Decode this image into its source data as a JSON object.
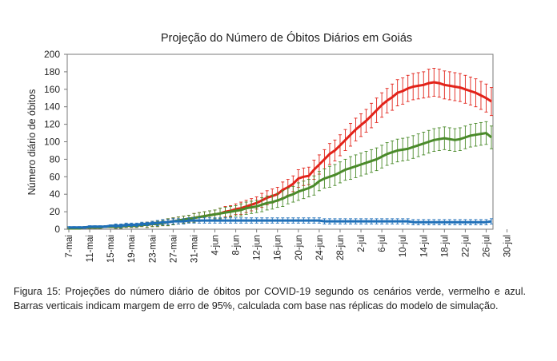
{
  "caption": "Figura 15: Projeções do número diário de óbitos por COVID-19 segundo os cenários verde, vermelho e azul. Barras verticais indicam margem de erro de 95%, calculada com base nas réplicas do modelo de simulação.",
  "chart_data": {
    "type": "line",
    "title": "Projeção do Número de Óbitos Diários em Goiás",
    "xlabel": "",
    "ylabel": "Número diário de óbitos",
    "ylim": [
      0,
      200
    ],
    "yticks": [
      0,
      20,
      40,
      60,
      80,
      100,
      120,
      140,
      160,
      180,
      200
    ],
    "xtick_labels": [
      "7-mai",
      "11-mai",
      "15-mai",
      "19-mai",
      "23-mai",
      "27-mai",
      "31-mai",
      "4-jun",
      "8-jun",
      "12-jun",
      "16-jun",
      "20-jun",
      "24-jun",
      "28-jun",
      "2-jul",
      "6-jul",
      "10-jul",
      "14-jul",
      "18-jul",
      "22-jul",
      "26-jul",
      "30-jul"
    ],
    "x_start": "7-mai",
    "x_end": "31-jul",
    "grid": false,
    "series": [
      {
        "color": "#e2231a",
        "values": [
          1,
          1,
          1,
          2,
          2,
          2,
          2,
          3,
          3,
          3,
          3,
          4,
          4,
          4,
          5,
          5,
          6,
          6,
          7,
          8,
          9,
          10,
          11,
          12,
          13,
          14,
          15,
          16,
          17,
          18,
          20,
          21,
          23,
          24,
          26,
          28,
          30,
          33,
          36,
          38,
          40,
          45,
          48,
          52,
          58,
          60,
          61,
          68,
          74,
          80,
          86,
          90,
          96,
          102,
          108,
          114,
          119,
          124,
          130,
          136,
          142,
          147,
          151,
          156,
          158,
          161,
          163,
          164,
          165,
          167,
          168,
          167,
          165,
          164,
          163,
          162,
          160,
          158,
          156,
          153,
          150,
          146
        ],
        "err": [
          1,
          1,
          1,
          1,
          1,
          1,
          1,
          1,
          1,
          2,
          2,
          2,
          2,
          2,
          2,
          3,
          3,
          3,
          3,
          4,
          4,
          4,
          4,
          4,
          5,
          5,
          5,
          5,
          5,
          6,
          6,
          6,
          6,
          7,
          7,
          7,
          7,
          8,
          8,
          8,
          8,
          9,
          9,
          9,
          10,
          10,
          10,
          11,
          11,
          11,
          12,
          12,
          12,
          12,
          13,
          13,
          13,
          13,
          14,
          14,
          14,
          14,
          15,
          15,
          15,
          15,
          15,
          15,
          15,
          16,
          16,
          16,
          16,
          16,
          16,
          16,
          16,
          16,
          16,
          16,
          16,
          16
        ]
      },
      {
        "color": "#4a8a2a",
        "values": [
          1,
          1,
          1,
          2,
          2,
          2,
          2,
          3,
          3,
          3,
          3,
          4,
          4,
          4,
          5,
          5,
          6,
          6,
          7,
          8,
          9,
          10,
          11,
          12,
          13,
          14,
          15,
          16,
          17,
          18,
          19,
          20,
          21,
          22,
          24,
          25,
          26,
          28,
          30,
          31,
          33,
          35,
          38,
          40,
          43,
          45,
          47,
          50,
          55,
          58,
          60,
          62,
          65,
          68,
          70,
          72,
          74,
          76,
          78,
          80,
          83,
          86,
          88,
          90,
          91,
          92,
          94,
          96,
          98,
          100,
          102,
          103,
          104,
          103,
          102,
          103,
          105,
          107,
          108,
          109,
          110,
          105
        ],
        "err": [
          1,
          1,
          1,
          1,
          1,
          1,
          1,
          1,
          1,
          2,
          2,
          2,
          2,
          2,
          2,
          3,
          3,
          3,
          3,
          4,
          4,
          4,
          4,
          4,
          5,
          5,
          5,
          5,
          5,
          6,
          6,
          6,
          6,
          7,
          7,
          7,
          7,
          8,
          8,
          8,
          8,
          9,
          9,
          9,
          10,
          10,
          10,
          11,
          11,
          11,
          12,
          12,
          12,
          12,
          13,
          13,
          13,
          13,
          13,
          13,
          13,
          13,
          13,
          13,
          13,
          13,
          13,
          13,
          13,
          13,
          13,
          13,
          13,
          13,
          13,
          13,
          13,
          13,
          13,
          13,
          13,
          13
        ]
      },
      {
        "color": "#1f6fb8",
        "values": [
          2,
          2,
          2,
          2,
          3,
          3,
          3,
          3,
          4,
          4,
          4,
          5,
          5,
          5,
          6,
          6,
          7,
          7,
          8,
          8,
          9,
          9,
          9,
          10,
          10,
          10,
          10,
          10,
          10,
          10,
          10,
          10,
          10,
          10,
          10,
          10,
          10,
          10,
          10,
          10,
          10,
          10,
          10,
          10,
          10,
          10,
          10,
          10,
          10,
          9,
          9,
          9,
          9,
          9,
          9,
          9,
          9,
          9,
          9,
          9,
          9,
          9,
          9,
          9,
          9,
          9,
          8,
          8,
          8,
          8,
          8,
          8,
          8,
          8,
          8,
          8,
          8,
          8,
          8,
          8,
          8,
          9
        ],
        "err": [
          1,
          1,
          1,
          1,
          1,
          1,
          1,
          1,
          1,
          2,
          2,
          2,
          2,
          2,
          2,
          2,
          2,
          3,
          3,
          3,
          3,
          3,
          3,
          3,
          3,
          3,
          3,
          3,
          3,
          3,
          3,
          3,
          3,
          3,
          3,
          3,
          3,
          3,
          3,
          3,
          3,
          3,
          3,
          3,
          3,
          3,
          3,
          3,
          3,
          3,
          3,
          3,
          3,
          3,
          3,
          3,
          3,
          3,
          3,
          3,
          3,
          3,
          3,
          3,
          3,
          3,
          3,
          3,
          3,
          3,
          3,
          3,
          3,
          3,
          3,
          3,
          3,
          3,
          3,
          3,
          3,
          3
        ]
      }
    ]
  }
}
